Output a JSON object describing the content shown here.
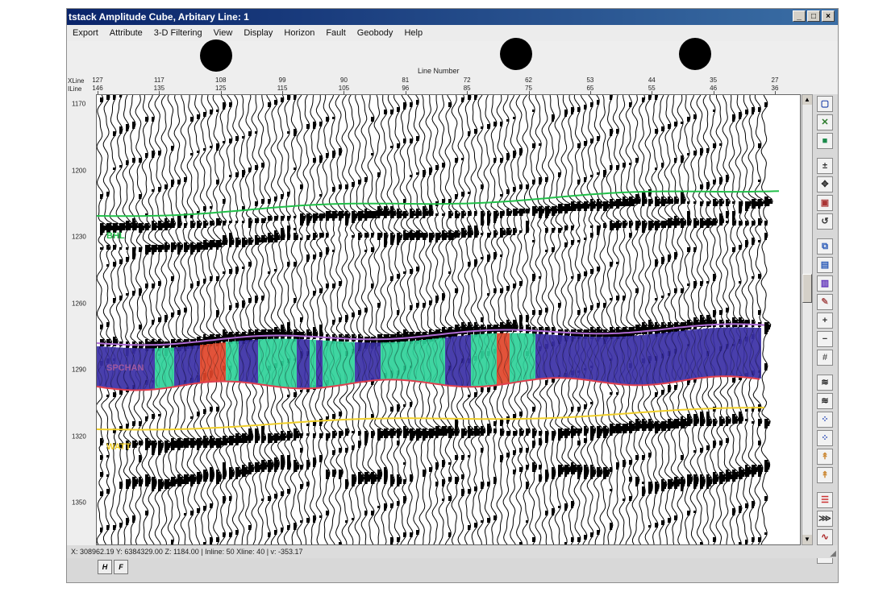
{
  "window": {
    "title": "tstack Amplitude Cube, Arbitary Line: 1",
    "controls": [
      "_",
      "□",
      "×"
    ]
  },
  "menu": [
    "Export",
    "Attribute",
    "3-D Filtering",
    "View",
    "Display",
    "Horizon",
    "Fault",
    "Geobody",
    "Help"
  ],
  "axis": {
    "title": "Line Number",
    "xline_label": "XLine",
    "inline_label": "ILine",
    "xline_ticks": [
      "127",
      "117",
      "108",
      "99",
      "90",
      "81",
      "72",
      "62",
      "53",
      "44",
      "35",
      "27"
    ],
    "inline_ticks": [
      "146",
      "135",
      "125",
      "115",
      "105",
      "96",
      "85",
      "75",
      "65",
      "55",
      "46",
      "36"
    ],
    "time_ticks": [
      "1170",
      "1200",
      "1230",
      "1260",
      "1290",
      "1320",
      "1350"
    ]
  },
  "horizons": [
    {
      "name": "BHL",
      "color": "#22c04a"
    },
    {
      "name": "SPCHAN",
      "color": "#a05aa0"
    },
    {
      "name": "WATT",
      "color": "#f0cf2a"
    }
  ],
  "colors": {
    "zone_blue": "#3a2fa6",
    "zone_green": "#2fd29a",
    "zone_red": "#e0452a",
    "base_line": "#e0404f",
    "top_line": "#b06cd6"
  },
  "status": {
    "text": "X: 308962.19 Y: 6384329.00 Z: 1184.00 | Inline: 50 Xline: 40 | v: -353.17"
  },
  "tools": [
    "window-icon",
    "crossline-icon",
    "cube-icon",
    "zoom-icon",
    "pan-icon",
    "image-icon",
    "reset-icon",
    "copy-icon",
    "layer-icon",
    "stack-icon",
    "brush-icon",
    "plus-icon",
    "minus-icon",
    "grid-icon",
    "wiggle-icon",
    "wiggle-icon",
    "dots-icon",
    "dots-icon",
    "pick-icon",
    "pick-icon",
    "lines-icon",
    "zigzag-icon",
    "wave-icon",
    "wave-icon"
  ],
  "bottom_buttons": [
    "H",
    "F"
  ]
}
